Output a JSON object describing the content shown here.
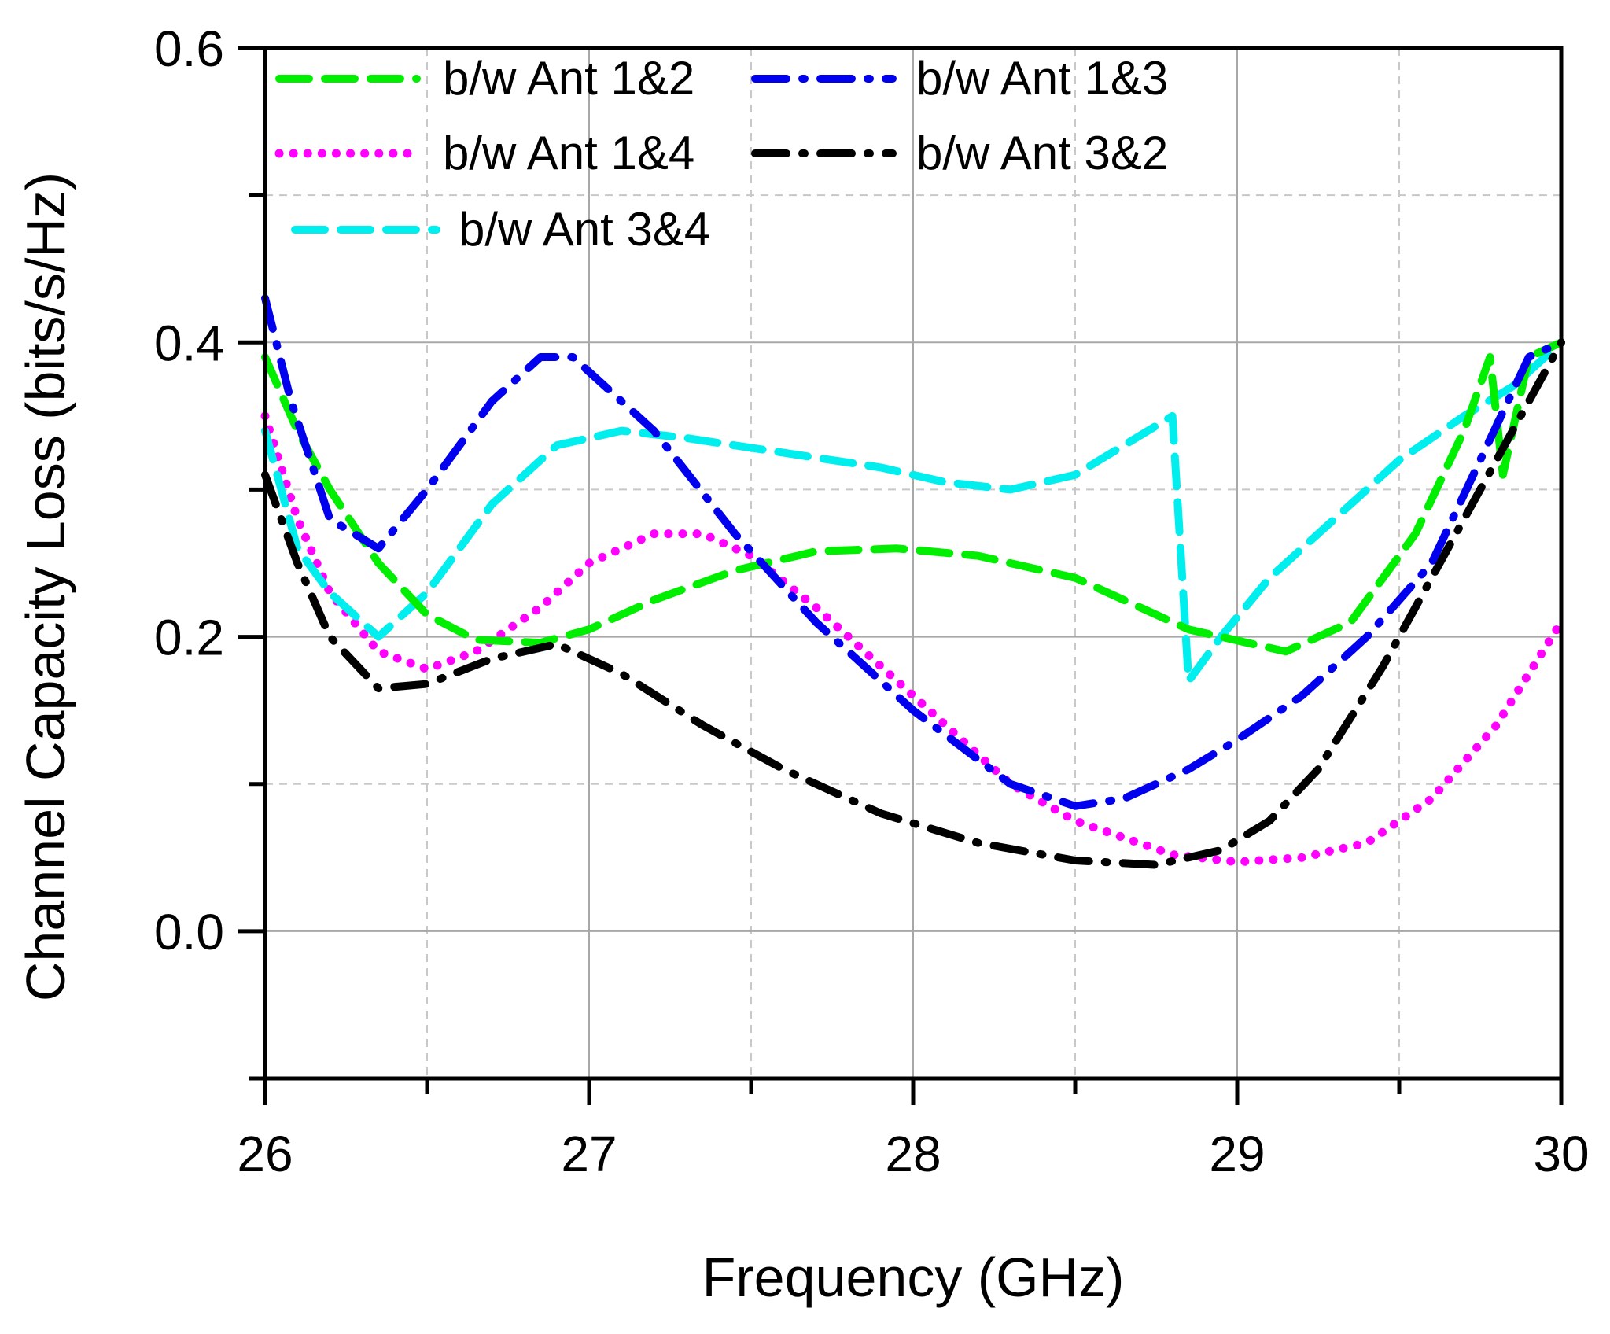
{
  "chart_data": {
    "type": "line",
    "title": "",
    "xlabel": "Frequency (GHz)",
    "ylabel": "Channel Capacity Loss (bits/s/Hz)",
    "xlim": [
      26,
      30
    ],
    "ylim": [
      -0.1,
      0.6
    ],
    "xticks": [
      26,
      27,
      28,
      29,
      30
    ],
    "xtick_labels": [
      "26",
      "27",
      "28",
      "29",
      "30"
    ],
    "xticks_minor": [
      26.5,
      27.5,
      28.5,
      29.5
    ],
    "yticks": [
      0.0,
      0.2,
      0.4,
      0.6
    ],
    "ytick_labels": [
      "0.0",
      "0.2",
      "0.4",
      "0.6"
    ],
    "yticks_minor": [
      -0.1,
      0.1,
      0.3,
      0.5
    ],
    "grid": true,
    "legend_position": "top-left",
    "series": [
      {
        "name": "b/w Ant 1&2",
        "color": "#00ee00",
        "style": "dashed",
        "x": [
          26.0,
          26.1,
          26.2,
          26.35,
          26.5,
          26.65,
          26.85,
          27.0,
          27.2,
          27.45,
          27.7,
          27.95,
          28.2,
          28.5,
          28.85,
          29.15,
          29.35,
          29.55,
          29.7,
          29.78,
          29.82,
          29.9,
          30.0
        ],
        "values": [
          0.39,
          0.34,
          0.3,
          0.25,
          0.215,
          0.198,
          0.196,
          0.205,
          0.225,
          0.245,
          0.258,
          0.26,
          0.255,
          0.24,
          0.205,
          0.19,
          0.21,
          0.27,
          0.34,
          0.39,
          0.31,
          0.39,
          0.4
        ]
      },
      {
        "name": "b/w Ant 1&3",
        "color": "#0000ee",
        "style": "dashdot",
        "x": [
          26.0,
          26.08,
          26.2,
          26.35,
          26.5,
          26.7,
          26.85,
          26.95,
          27.2,
          27.45,
          27.7,
          28.0,
          28.3,
          28.5,
          28.65,
          28.85,
          29.0,
          29.2,
          29.4,
          29.6,
          29.75,
          29.9,
          30.0
        ],
        "values": [
          0.43,
          0.36,
          0.28,
          0.26,
          0.3,
          0.36,
          0.39,
          0.39,
          0.34,
          0.27,
          0.21,
          0.15,
          0.1,
          0.085,
          0.09,
          0.11,
          0.13,
          0.16,
          0.2,
          0.25,
          0.32,
          0.39,
          0.4
        ]
      },
      {
        "name": "b/w Ant 1&4",
        "color": "#ff00ff",
        "style": "dotted",
        "x": [
          26.0,
          26.1,
          26.2,
          26.35,
          26.5,
          26.65,
          26.85,
          27.0,
          27.2,
          27.35,
          27.5,
          27.7,
          28.0,
          28.3,
          28.5,
          28.8,
          29.0,
          29.2,
          29.4,
          29.6,
          29.8,
          30.0
        ],
        "values": [
          0.35,
          0.28,
          0.23,
          0.19,
          0.178,
          0.19,
          0.22,
          0.25,
          0.27,
          0.27,
          0.255,
          0.22,
          0.16,
          0.1,
          0.075,
          0.052,
          0.047,
          0.05,
          0.06,
          0.09,
          0.14,
          0.21
        ]
      },
      {
        "name": "b/w Ant 3&2",
        "color": "#000000",
        "style": "dashdot",
        "x": [
          26.0,
          26.1,
          26.2,
          26.35,
          26.5,
          26.7,
          26.9,
          27.1,
          27.35,
          27.6,
          27.9,
          28.2,
          28.5,
          28.75,
          28.95,
          29.1,
          29.25,
          29.45,
          29.65,
          29.85,
          30.0
        ],
        "values": [
          0.31,
          0.25,
          0.2,
          0.165,
          0.168,
          0.185,
          0.195,
          0.175,
          0.14,
          0.11,
          0.08,
          0.06,
          0.048,
          0.045,
          0.055,
          0.075,
          0.11,
          0.18,
          0.26,
          0.34,
          0.4
        ]
      },
      {
        "name": "b/w Ant 3&4",
        "color": "#00eeee",
        "style": "dashed",
        "x": [
          26.0,
          26.1,
          26.2,
          26.35,
          26.5,
          26.7,
          26.9,
          27.1,
          27.3,
          27.6,
          27.9,
          28.1,
          28.3,
          28.5,
          28.8,
          28.85,
          28.95,
          29.1,
          29.3,
          29.5,
          29.7,
          29.85,
          30.0
        ],
        "values": [
          0.34,
          0.26,
          0.23,
          0.2,
          0.23,
          0.29,
          0.33,
          0.34,
          0.335,
          0.325,
          0.315,
          0.305,
          0.3,
          0.31,
          0.35,
          0.17,
          0.2,
          0.24,
          0.28,
          0.32,
          0.35,
          0.37,
          0.4
        ]
      }
    ]
  }
}
